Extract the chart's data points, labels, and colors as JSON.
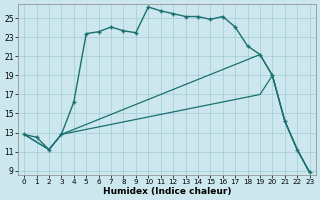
{
  "xlabel": "Humidex (Indice chaleur)",
  "background_color": "#cce8ee",
  "grid_color": "#aacfd8",
  "line_color": "#1a7070",
  "xlim": [
    -0.5,
    23.5
  ],
  "ylim": [
    8.5,
    26.5
  ],
  "xticks": [
    0,
    1,
    2,
    3,
    4,
    5,
    6,
    7,
    8,
    9,
    10,
    11,
    12,
    13,
    14,
    15,
    16,
    17,
    18,
    19,
    20,
    21,
    22,
    23
  ],
  "yticks": [
    9,
    11,
    13,
    15,
    17,
    19,
    21,
    23,
    25
  ],
  "line1_x": [
    0,
    1,
    2,
    3,
    4,
    5,
    6,
    7,
    8,
    9,
    10,
    11,
    12,
    13,
    14,
    15,
    16,
    17,
    18,
    19,
    20,
    21,
    22,
    23
  ],
  "line1_y": [
    12.8,
    12.5,
    11.2,
    12.8,
    16.2,
    23.4,
    23.6,
    24.1,
    23.7,
    23.5,
    26.2,
    25.8,
    25.5,
    25.2,
    25.2,
    24.9,
    25.2,
    24.1,
    22.1,
    21.2,
    19.0,
    14.2,
    11.2,
    8.8
  ],
  "line2_x": [
    0,
    2,
    3,
    19,
    20,
    21,
    22,
    23
  ],
  "line2_y": [
    12.8,
    11.2,
    12.8,
    21.2,
    19.0,
    14.2,
    11.2,
    8.8
  ],
  "line3_x": [
    0,
    2,
    3,
    19,
    20,
    21,
    22,
    23
  ],
  "line3_y": [
    12.8,
    11.2,
    12.8,
    17.0,
    19.0,
    14.2,
    11.2,
    8.8
  ]
}
